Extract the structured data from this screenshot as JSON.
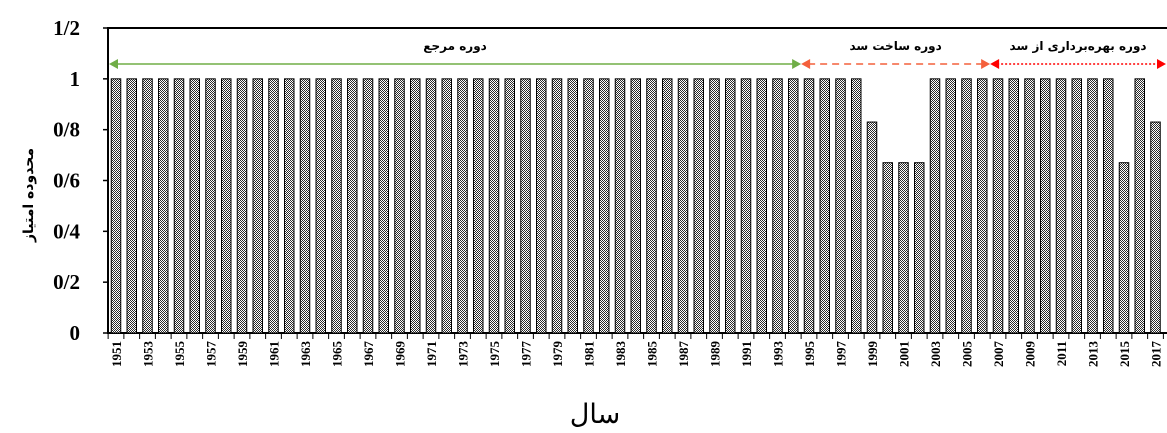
{
  "chart_data": {
    "type": "bar",
    "title": "",
    "xlabel": "سال",
    "ylabel": "محدوده امتیاز",
    "ylim": [
      0,
      1.2
    ],
    "yticks": [
      "0",
      "0/2",
      "0/4",
      "0/6",
      "0/8",
      "1",
      "1/2"
    ],
    "grid": false,
    "categories": [
      1951,
      1952,
      1953,
      1954,
      1955,
      1956,
      1957,
      1958,
      1959,
      1960,
      1961,
      1962,
      1963,
      1964,
      1965,
      1966,
      1967,
      1968,
      1969,
      1970,
      1971,
      1972,
      1973,
      1974,
      1975,
      1976,
      1977,
      1978,
      1979,
      1980,
      1981,
      1982,
      1983,
      1984,
      1985,
      1986,
      1987,
      1988,
      1989,
      1990,
      1991,
      1992,
      1993,
      1994,
      1995,
      1996,
      1997,
      1998,
      1999,
      2000,
      2001,
      2002,
      2003,
      2004,
      2005,
      2006,
      2007,
      2008,
      2009,
      2010,
      2011,
      2012,
      2013,
      2014,
      2015,
      2016,
      2017
    ],
    "xtick_labels": [
      "1951",
      "1953",
      "1955",
      "1957",
      "1959",
      "1961",
      "1963",
      "1965",
      "1967",
      "1969",
      "1971",
      "1973",
      "1975",
      "1977",
      "1979",
      "1981",
      "1983",
      "1985",
      "1987",
      "1989",
      "1991",
      "1993",
      "1995",
      "1997",
      "1999",
      "2001",
      "2003",
      "2005",
      "2007",
      "2009",
      "2011",
      "2013",
      "2015",
      "2017"
    ],
    "values": [
      1,
      1,
      1,
      1,
      1,
      1,
      1,
      1,
      1,
      1,
      1,
      1,
      1,
      1,
      1,
      1,
      1,
      1,
      1,
      1,
      1,
      1,
      1,
      1,
      1,
      1,
      1,
      1,
      1,
      1,
      1,
      1,
      1,
      1,
      1,
      1,
      1,
      1,
      1,
      1,
      1,
      1,
      1,
      1,
      1,
      1,
      1,
      1,
      0.83,
      0.67,
      0.67,
      0.67,
      1,
      1,
      1,
      1,
      1,
      1,
      1,
      1,
      1,
      1,
      1,
      1,
      0.67,
      1,
      0.83
    ],
    "bar_fill": "#7f7f7f",
    "periods": [
      {
        "label": "دوره مرجع",
        "from": 1951,
        "to": 1994,
        "color": "#70ad47",
        "style": "solid"
      },
      {
        "label": "دوره ساخت سد",
        "from": 1994,
        "to": 2006,
        "color": "#f4603c",
        "style": "dashed"
      },
      {
        "label": "دوره بهره‌برداری از سد",
        "from": 2006,
        "to": 2017,
        "color": "#ff0000",
        "style": "dotted"
      }
    ]
  }
}
